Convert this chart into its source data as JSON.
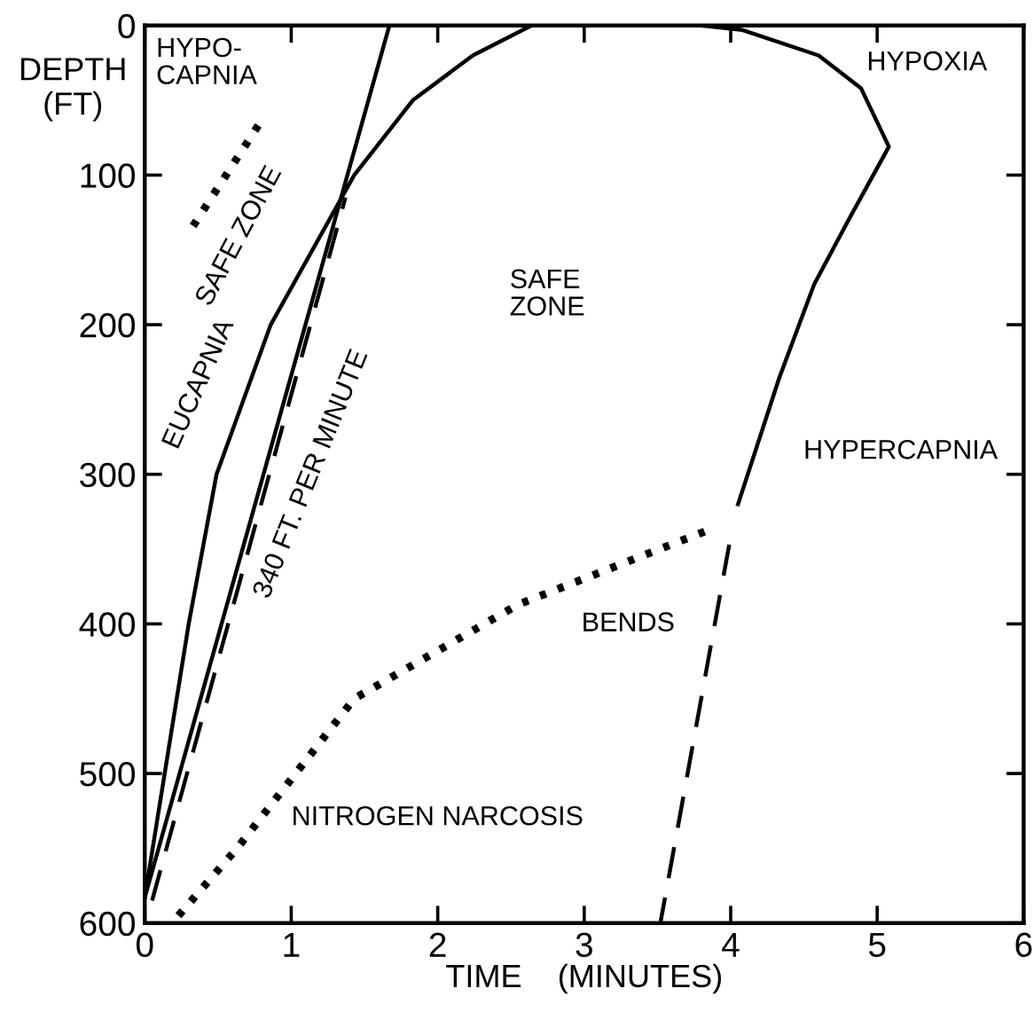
{
  "chart_data": {
    "type": "line",
    "xlabel": "TIME    (MINUTES)",
    "ylabel": "DEPTH\n(FT)",
    "xlim": [
      0,
      6
    ],
    "xticks": [
      0,
      1,
      2,
      3,
      4,
      5,
      6
    ],
    "ylim": [
      600,
      0
    ],
    "yticks": [
      0,
      100,
      200,
      300,
      400,
      500,
      600
    ],
    "grid": false,
    "legend": false,
    "marker": "none",
    "series": [
      {
        "color": "#000000",
        "line_style": "solid",
        "x": [
          0,
          0.3,
          0.49,
          0.86,
          1.43,
          1.83,
          2.24,
          2.64,
          3.2,
          3.8,
          4.08,
          4.6,
          4.89,
          5.08,
          4.81,
          4.57,
          4.33,
          4.05
        ],
        "values": [
          583,
          400,
          300,
          200,
          100,
          50,
          20,
          0,
          0,
          0,
          3,
          20,
          42,
          81,
          129,
          173,
          236,
          320
        ]
      },
      {
        "color": "#000000",
        "line_style": "solid",
        "x": [
          0,
          1.67
        ],
        "values": [
          583,
          0
        ]
      },
      {
        "color": "#000000",
        "line_style": "dashed",
        "x": [
          0.05,
          1.37
        ],
        "values": [
          585,
          115
        ]
      },
      {
        "color": "#000000",
        "line_style": "dashed",
        "x": [
          3.99,
          3.52
        ],
        "values": [
          347,
          600
        ]
      },
      {
        "color": "#000000",
        "line_style": "dotted",
        "x": [
          0.33,
          0.8
        ],
        "values": [
          134,
          63
        ]
      },
      {
        "color": "#000000",
        "line_style": "dotted",
        "x": [
          0.23,
          0.63,
          1.43,
          2.55,
          3.88
        ],
        "values": [
          595,
          550,
          450,
          387,
          336
        ]
      }
    ],
    "annotations": [
      "HYPO-\nCAPNIA",
      "SAFE ZONE",
      "EUCAPNIA",
      "340 FT. PER MINUTE",
      "SAFE\nZONE",
      "HYPOXIA",
      "HYPERCAPNIA",
      "BENDS",
      "NITROGEN NARCOSIS"
    ]
  }
}
